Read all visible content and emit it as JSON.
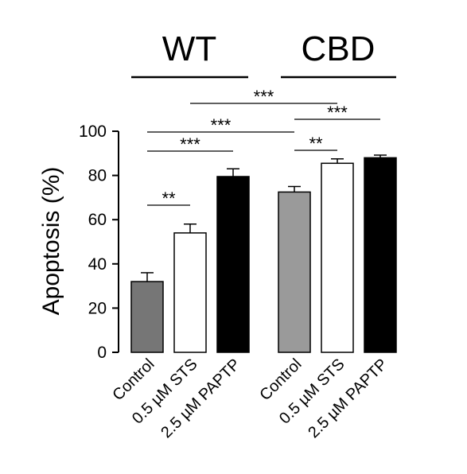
{
  "chart_data": {
    "type": "bar",
    "groups": [
      {
        "label": "WT",
        "bars": [
          {
            "category": "Control",
            "value": 32,
            "error": 4,
            "color": "#767676"
          },
          {
            "category": "0.5 µM STS",
            "value": 54,
            "error": 4,
            "color": "#ffffff"
          },
          {
            "category": "2.5 µM PAPTP",
            "value": 79.5,
            "error": 3.5,
            "color": "#000000"
          }
        ]
      },
      {
        "label": "CBD",
        "bars": [
          {
            "category": "Control",
            "value": 72.5,
            "error": 2.5,
            "color": "#9a9a9a"
          },
          {
            "category": "0.5 µM STS",
            "value": 85.5,
            "error": 2,
            "color": "#ffffff"
          },
          {
            "category": "2.5 µM PAPTP",
            "value": 88,
            "error": 1.2,
            "color": "#000000"
          }
        ]
      }
    ],
    "ylabel": "Apoptosis (%)",
    "ylim": [
      0,
      100
    ],
    "yticks": [
      "0",
      "20",
      "40",
      "60",
      "80",
      "100"
    ],
    "significance": [
      {
        "from": [
          0,
          0
        ],
        "to": [
          0,
          1
        ],
        "label": "**"
      },
      {
        "from": [
          0,
          0
        ],
        "to": [
          0,
          2
        ],
        "label": "***"
      },
      {
        "from": [
          0,
          0
        ],
        "to": [
          1,
          0
        ],
        "label": "***"
      },
      {
        "from": [
          0,
          1
        ],
        "to": [
          1,
          1
        ],
        "label": "***"
      },
      {
        "from": [
          1,
          0
        ],
        "to": [
          1,
          1
        ],
        "label": "**"
      },
      {
        "from": [
          1,
          0
        ],
        "to": [
          1,
          2
        ],
        "label": "***"
      }
    ],
    "grid": false
  }
}
